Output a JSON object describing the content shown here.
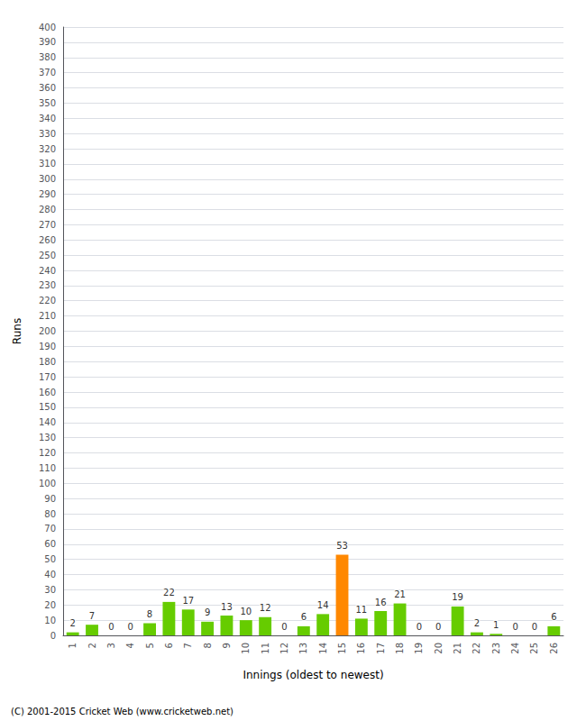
{
  "chart_data": {
    "type": "bar",
    "xlabel": "Innings (oldest to newest)",
    "ylabel": "Runs",
    "categories": [
      "1",
      "2",
      "3",
      "4",
      "5",
      "6",
      "7",
      "8",
      "9",
      "10",
      "11",
      "12",
      "13",
      "14",
      "15",
      "16",
      "17",
      "18",
      "19",
      "20",
      "21",
      "22",
      "23",
      "24",
      "25",
      "26"
    ],
    "values": [
      2,
      7,
      0,
      0,
      8,
      22,
      17,
      9,
      13,
      10,
      12,
      0,
      6,
      14,
      53,
      11,
      16,
      21,
      0,
      0,
      19,
      2,
      1,
      0,
      0,
      6
    ],
    "colors": [
      "#66cc00",
      "#66cc00",
      "#66cc00",
      "#66cc00",
      "#66cc00",
      "#66cc00",
      "#66cc00",
      "#66cc00",
      "#66cc00",
      "#66cc00",
      "#66cc00",
      "#66cc00",
      "#66cc00",
      "#66cc00",
      "#ff8800",
      "#66cc00",
      "#66cc00",
      "#66cc00",
      "#66cc00",
      "#66cc00",
      "#66cc00",
      "#66cc00",
      "#66cc00",
      "#66cc00",
      "#66cc00",
      "#66cc00"
    ],
    "ylim": [
      0,
      400
    ],
    "yticks": [
      0,
      10,
      20,
      30,
      40,
      50,
      60,
      70,
      80,
      90,
      100,
      110,
      120,
      130,
      140,
      150,
      160,
      170,
      180,
      190,
      200,
      210,
      220,
      230,
      240,
      250,
      260,
      270,
      280,
      290,
      300,
      310,
      320,
      330,
      340,
      350,
      360,
      370,
      380,
      390,
      400
    ],
    "grid": true,
    "data_labels": true,
    "footer": "(C) 2001-2015 Cricket Web (www.cricketweb.net)"
  }
}
